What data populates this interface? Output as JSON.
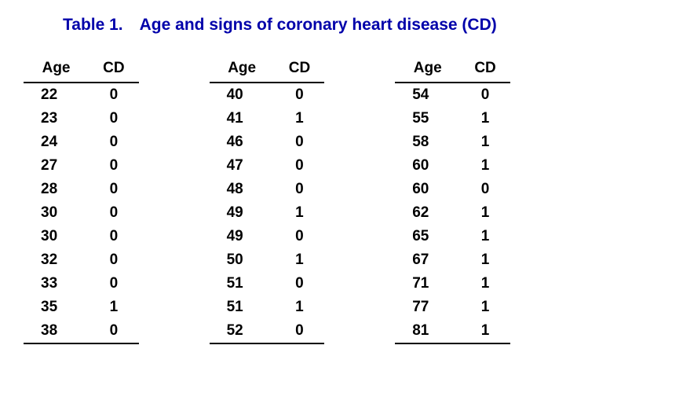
{
  "title": "Table 1. Age and signs of coronary heart disease (CD)",
  "title_color": "#0000aa",
  "title_fontsize": 21,
  "text_color": "#000000",
  "border_color": "#000000",
  "background_color": "#ffffff",
  "columns": [
    "Age",
    "CD"
  ],
  "groups": [
    {
      "rows": [
        {
          "age": "22",
          "cd": "0"
        },
        {
          "age": "23",
          "cd": "0"
        },
        {
          "age": "24",
          "cd": "0"
        },
        {
          "age": "27",
          "cd": "0"
        },
        {
          "age": "28",
          "cd": "0"
        },
        {
          "age": "30",
          "cd": "0"
        },
        {
          "age": "30",
          "cd": "0"
        },
        {
          "age": "32",
          "cd": "0"
        },
        {
          "age": "33",
          "cd": "0"
        },
        {
          "age": "35",
          "cd": "1"
        },
        {
          "age": "38",
          "cd": "0"
        }
      ]
    },
    {
      "rows": [
        {
          "age": "40",
          "cd": "0"
        },
        {
          "age": "41",
          "cd": "1"
        },
        {
          "age": "46",
          "cd": "0"
        },
        {
          "age": "47",
          "cd": "0"
        },
        {
          "age": "48",
          "cd": "0"
        },
        {
          "age": "49",
          "cd": "1"
        },
        {
          "age": "49",
          "cd": "0"
        },
        {
          "age": "50",
          "cd": "1"
        },
        {
          "age": "51",
          "cd": "0"
        },
        {
          "age": "51",
          "cd": "1"
        },
        {
          "age": "52",
          "cd": "0"
        }
      ]
    },
    {
      "rows": [
        {
          "age": "54",
          "cd": "0"
        },
        {
          "age": "55",
          "cd": "1"
        },
        {
          "age": "58",
          "cd": "1"
        },
        {
          "age": "60",
          "cd": "1"
        },
        {
          "age": "60",
          "cd": "0"
        },
        {
          "age": "62",
          "cd": "1"
        },
        {
          "age": "65",
          "cd": "1"
        },
        {
          "age": "67",
          "cd": "1"
        },
        {
          "age": "71",
          "cd": "1"
        },
        {
          "age": "77",
          "cd": "1"
        },
        {
          "age": "81",
          "cd": "1"
        }
      ]
    }
  ]
}
